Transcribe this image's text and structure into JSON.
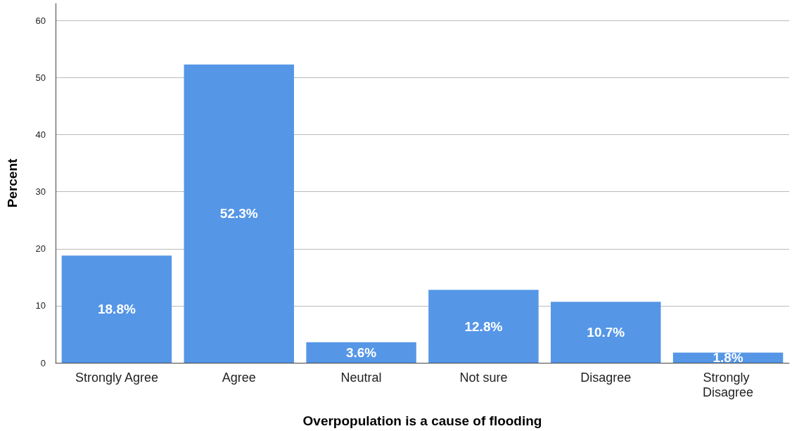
{
  "chart_data": {
    "type": "bar",
    "xlabel": "Overpopulation is a cause of flooding",
    "ylabel": "Percent",
    "categories": [
      "Strongly Agree",
      "Agree",
      "Neutral",
      "Not sure",
      "Disagree",
      "Strongly Disagree"
    ],
    "values": [
      18.8,
      52.3,
      3.6,
      12.8,
      10.7,
      1.8
    ],
    "value_labels": [
      "18.8%",
      "52.3%",
      "3.6%",
      "12.8%",
      "10.7%",
      "1.8%"
    ],
    "color": "#5596e6",
    "ylim": [
      0,
      63
    ],
    "yticks": [
      0,
      10,
      20,
      30,
      40,
      50,
      60
    ],
    "grid": "y"
  }
}
